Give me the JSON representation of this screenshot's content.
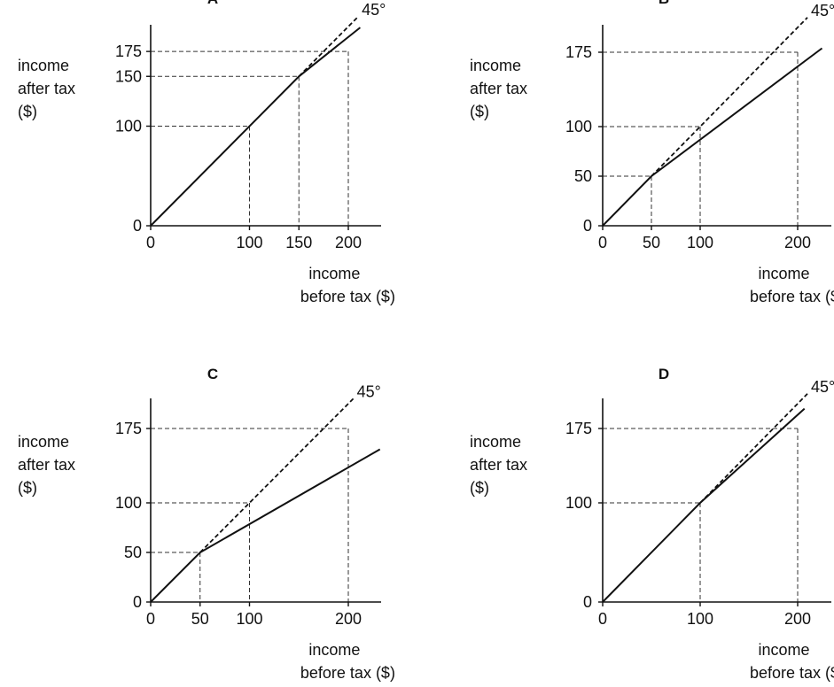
{
  "chart_data": [
    {
      "type": "line",
      "title": "A",
      "ylabel_lines": [
        "income",
        "after tax",
        "($)"
      ],
      "xlabel_lines": [
        "income",
        "before tax ($)"
      ],
      "diagonal_label": "45°",
      "xticks": [
        0,
        100,
        150,
        200
      ],
      "yticks": [
        0,
        100,
        150,
        175
      ],
      "series": [
        {
          "x": [
            0,
            150,
            212
          ],
          "y": [
            0,
            150,
            199
          ]
        }
      ],
      "diagonal": {
        "x": [
          150,
          210
        ],
        "y": [
          150,
          210
        ]
      },
      "guides": [
        {
          "x": 100,
          "y": 100
        },
        {
          "x": 150,
          "y": 150
        },
        {
          "x": 200,
          "y": 175
        }
      ]
    },
    {
      "type": "line",
      "title": "B",
      "ylabel_lines": [
        "income",
        "after tax",
        "($)"
      ],
      "xlabel_lines": [
        "income",
        "before tax ($)"
      ],
      "diagonal_label": "45°",
      "xticks": [
        0,
        50,
        100,
        200
      ],
      "yticks": [
        0,
        50,
        100,
        175
      ],
      "series": [
        {
          "x": [
            0,
            50,
            225
          ],
          "y": [
            0,
            50,
            179
          ]
        }
      ],
      "diagonal": {
        "x": [
          50,
          210
        ],
        "y": [
          50,
          210
        ]
      },
      "guides": [
        {
          "x": 50,
          "y": 50
        },
        {
          "x": 100,
          "y": 100
        },
        {
          "x": 200,
          "y": 175
        }
      ]
    },
    {
      "type": "line",
      "title": "C",
      "ylabel_lines": [
        "income",
        "after tax",
        "($)"
      ],
      "xlabel_lines": [
        "income",
        "before tax ($)"
      ],
      "diagonal_label": "45°",
      "xticks": [
        0,
        50,
        100,
        200
      ],
      "yticks": [
        0,
        50,
        100,
        175
      ],
      "series": [
        {
          "x": [
            0,
            50,
            232
          ],
          "y": [
            0,
            50,
            154
          ]
        }
      ],
      "diagonal": {
        "x": [
          50,
          205
        ],
        "y": [
          50,
          205
        ]
      },
      "guides": [
        {
          "x": 50,
          "y": 50
        },
        {
          "x": 100,
          "y": 100
        },
        {
          "x": 200,
          "y": 175
        }
      ]
    },
    {
      "type": "line",
      "title": "D",
      "ylabel_lines": [
        "income",
        "after tax",
        "($)"
      ],
      "xlabel_lines": [
        "income",
        "before tax ($)"
      ],
      "diagonal_label": "45°",
      "xticks": [
        0,
        100,
        200
      ],
      "yticks": [
        0,
        100,
        175
      ],
      "series": [
        {
          "x": [
            0,
            100,
            207
          ],
          "y": [
            0,
            100,
            195
          ]
        }
      ],
      "diagonal": {
        "x": [
          100,
          210
        ],
        "y": [
          100,
          210
        ]
      },
      "guides": [
        {
          "x": 100,
          "y": 100
        },
        {
          "x": 200,
          "y": 175
        }
      ]
    }
  ]
}
